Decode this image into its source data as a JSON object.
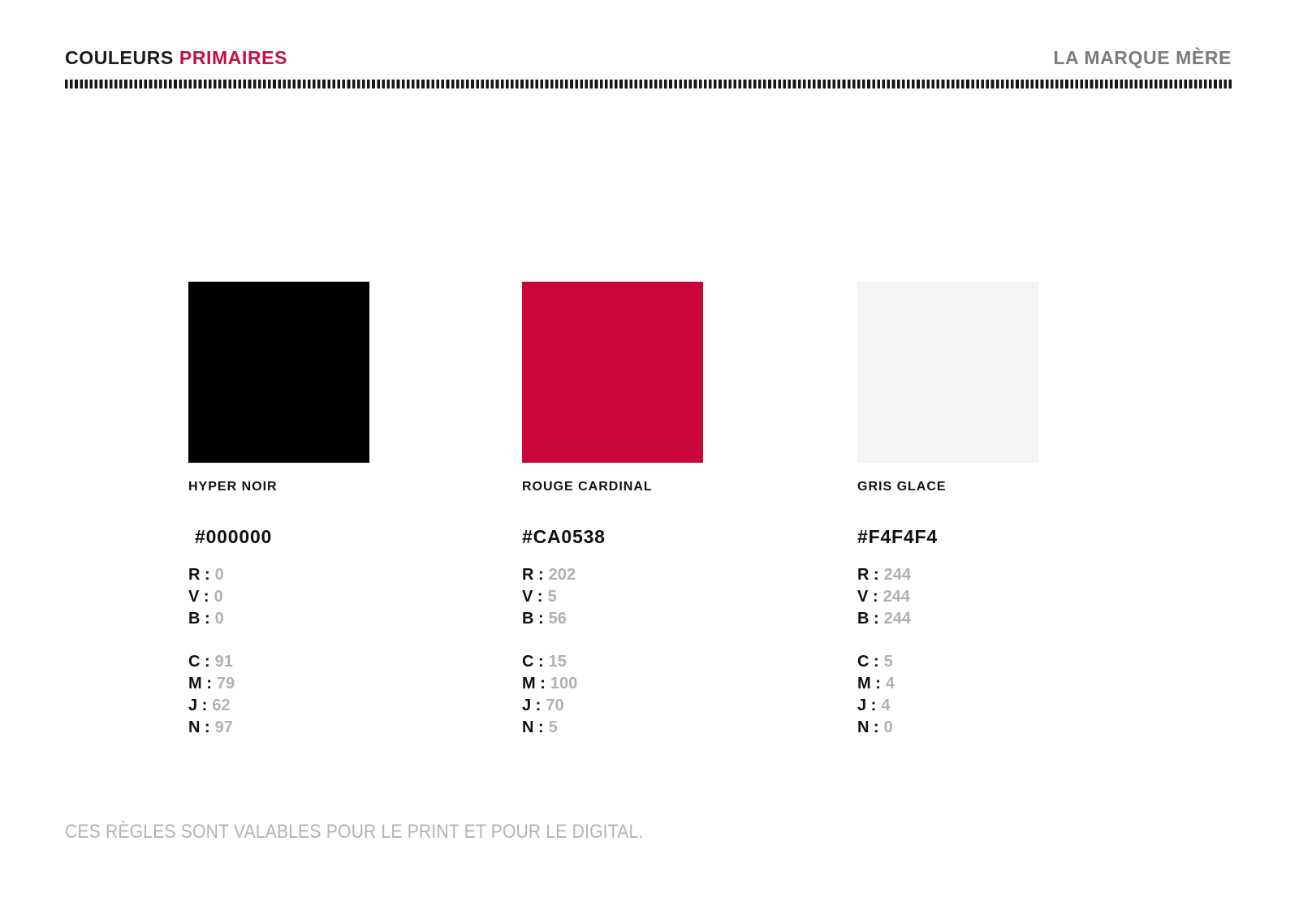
{
  "header": {
    "title_primary": "COULEURS",
    "title_accent": "PRIMAIRES",
    "brand": "LA MARQUE MÈRE"
  },
  "palette": {
    "accent_red": "#C2113E",
    "heading_black": "#1A1A1A",
    "brand_gray": "#7C7C7C",
    "value_gray": "#B1B1B1",
    "footer_gray": "#B3B3B3",
    "rule_black": "#161616"
  },
  "swatches": [
    {
      "name": "HYPER NOIR",
      "hex": "#000000",
      "rgb": [
        {
          "label": "R :",
          "value": "0"
        },
        {
          "label": "V :",
          "value": "0"
        },
        {
          "label": "B :",
          "value": "0"
        }
      ],
      "cmyk": [
        {
          "label": "C :",
          "value": "91"
        },
        {
          "label": "M :",
          "value": "79"
        },
        {
          "label": "J :",
          "value": "62"
        },
        {
          "label": "N :",
          "value": "97"
        }
      ]
    },
    {
      "name": "ROUGE CARDINAL",
      "hex": "#CA0538",
      "rgb": [
        {
          "label": "R :",
          "value": "202"
        },
        {
          "label": "V :",
          "value": "5"
        },
        {
          "label": "B :",
          "value": "56"
        }
      ],
      "cmyk": [
        {
          "label": "C :",
          "value": "15"
        },
        {
          "label": "M :",
          "value": "100"
        },
        {
          "label": "J :",
          "value": "70"
        },
        {
          "label": "N :",
          "value": "5"
        }
      ]
    },
    {
      "name": "GRIS GLACE",
      "hex": "#F4F4F4",
      "rgb": [
        {
          "label": "R :",
          "value": "244"
        },
        {
          "label": "V :",
          "value": "244"
        },
        {
          "label": "B :",
          "value": "244"
        }
      ],
      "cmyk": [
        {
          "label": "C :",
          "value": "5"
        },
        {
          "label": "M :",
          "value": "4"
        },
        {
          "label": "J :",
          "value": "4"
        },
        {
          "label": "N :",
          "value": "0"
        }
      ]
    }
  ],
  "footer": {
    "note": "CES RÈGLES SONT VALABLES POUR LE PRINT ET POUR LE DIGITAL."
  }
}
